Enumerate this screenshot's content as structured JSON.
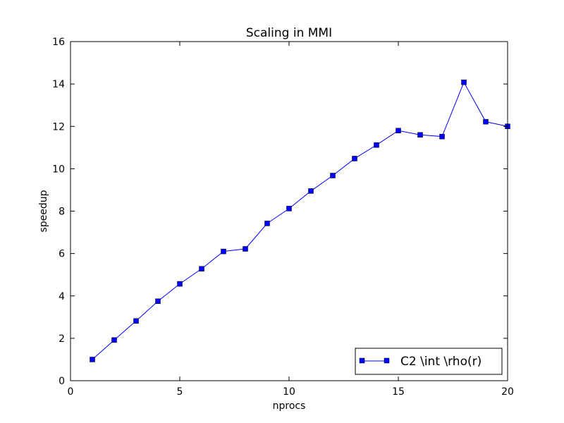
{
  "chart_data": {
    "type": "line",
    "title": "Scaling in MMI",
    "xlabel": "nprocs",
    "ylabel": "speedup",
    "xlim": [
      0,
      20
    ],
    "ylim": [
      0,
      16
    ],
    "xticks": [
      0,
      5,
      10,
      15,
      20
    ],
    "yticks": [
      0,
      2,
      4,
      6,
      8,
      10,
      12,
      14,
      16
    ],
    "grid": false,
    "legend_position": "lower-right",
    "series": [
      {
        "name": "C2 \\int \\rho(r)",
        "color": "#0000ff",
        "marker": "square",
        "x": [
          1,
          2,
          3,
          4,
          5,
          6,
          7,
          8,
          9,
          10,
          11,
          12,
          13,
          14,
          15,
          16,
          17,
          18,
          19,
          20
        ],
        "y": [
          1.0,
          1.92,
          2.82,
          3.75,
          4.57,
          5.28,
          6.1,
          6.22,
          7.42,
          8.12,
          8.95,
          9.68,
          10.48,
          11.12,
          11.8,
          11.6,
          11.52,
          14.08,
          12.22,
          12.0
        ]
      }
    ]
  }
}
